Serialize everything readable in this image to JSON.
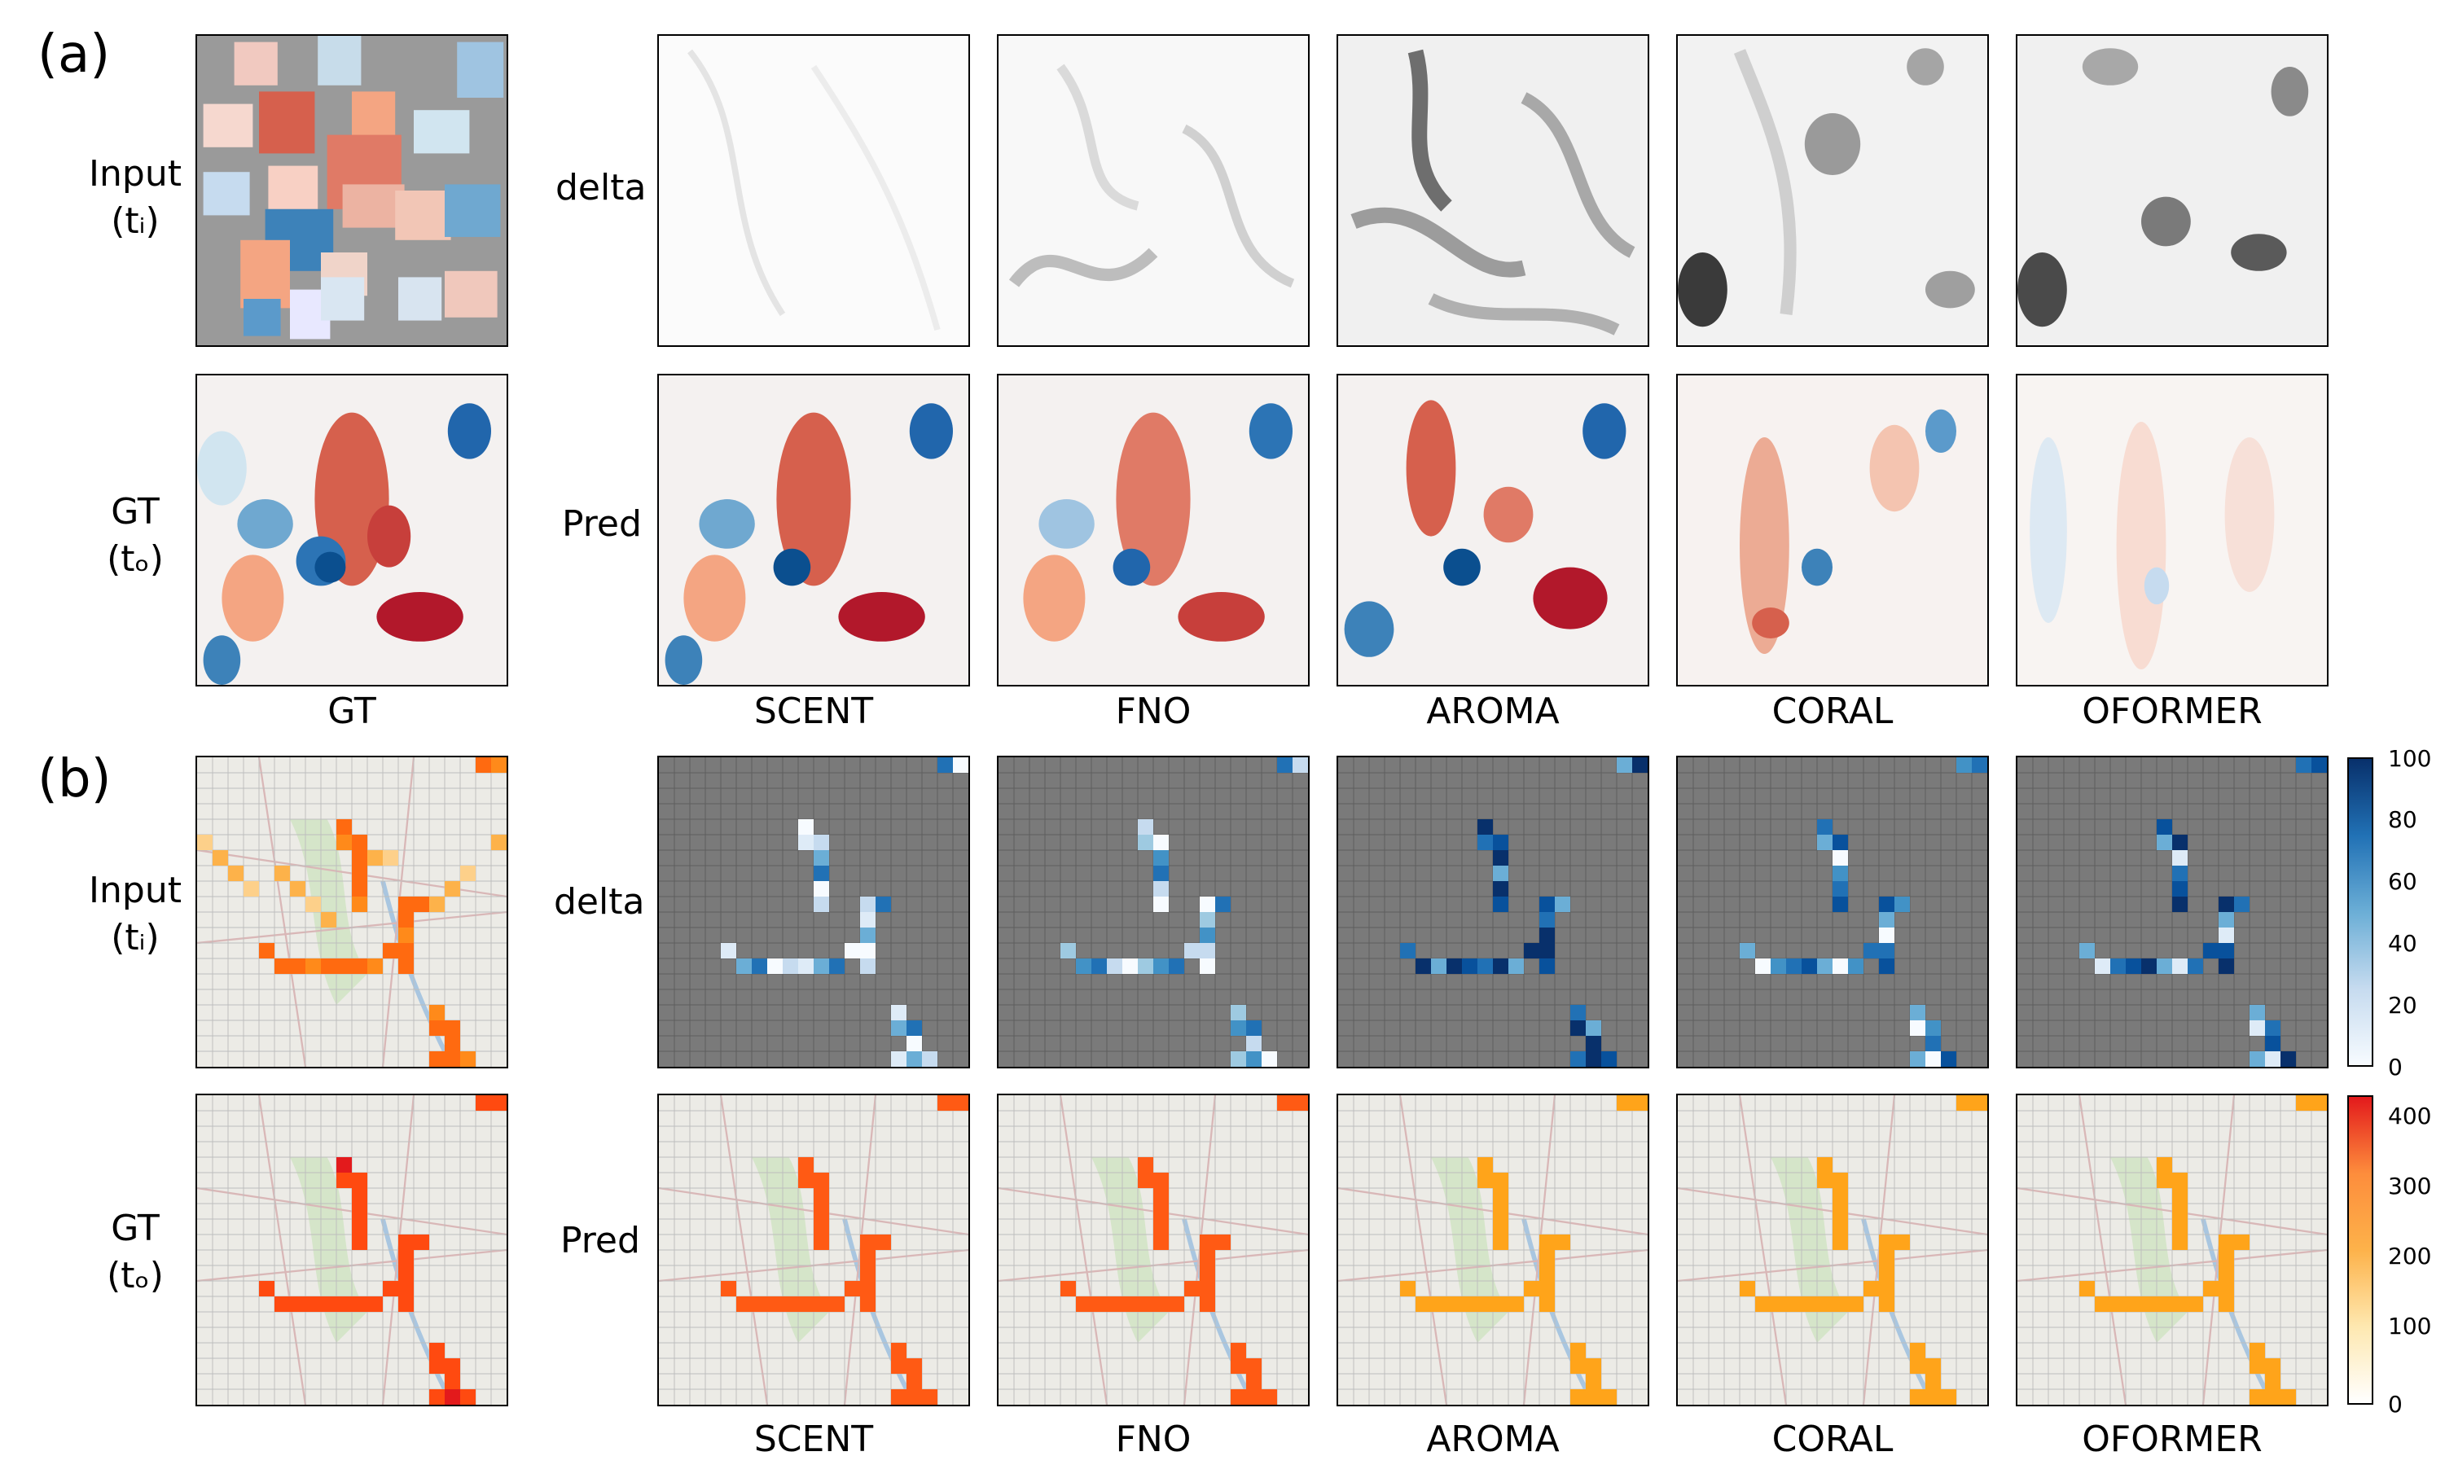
{
  "panels": {
    "a": {
      "tag": "(a)",
      "row_top_label": "Input",
      "row_top_time": "(tᵢ)",
      "row_bottom_label": "GT",
      "row_bottom_time": "(tₒ)",
      "delta_label": "delta",
      "pred_label": "Pred",
      "gt_col_label": "GT",
      "models": [
        "SCENT",
        "FNO",
        "AROMA",
        "CORAL",
        "OFORMER"
      ]
    },
    "b": {
      "tag": "(b)",
      "row_top_label": "Input",
      "row_top_time": "(tᵢ)",
      "row_bottom_label": "GT",
      "row_bottom_time": "(tₒ)",
      "delta_label": "delta",
      "pred_label": "Pred",
      "models": [
        "SCENT",
        "FNO",
        "AROMA",
        "CORAL",
        "OFORMER"
      ],
      "delta_colorbar": {
        "ticks": [
          "100",
          "80",
          "60",
          "40",
          "20",
          "0"
        ],
        "cmap": [
          "#08306b",
          "#2171b5",
          "#6baed6",
          "#c6dbef",
          "#f7fbff"
        ]
      },
      "pred_colorbar": {
        "ticks": [
          "400",
          "300",
          "200",
          "100",
          "0"
        ],
        "cmap": [
          "#e31a1c",
          "#fd8d3c",
          "#fdb24a",
          "#fee8b0",
          "#ffffff"
        ]
      }
    }
  },
  "colors": {
    "red": "#b2182b",
    "blue": "#2166ac",
    "grid_gray": "#7a7a7a",
    "orange": "#ff5a14",
    "amber": "#ffa41a"
  }
}
